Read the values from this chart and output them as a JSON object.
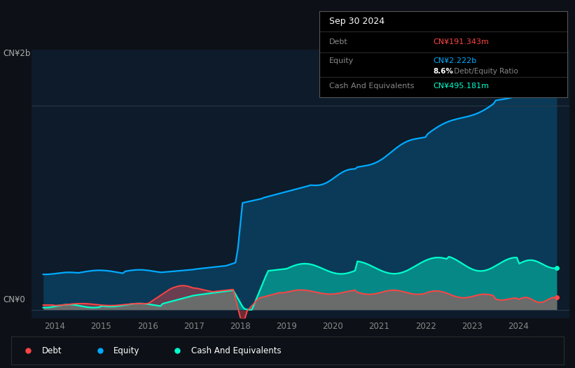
{
  "background_color": "#0d1117",
  "plot_bg_color": "#0d1b2a",
  "ylabel_top": "CN¥2b",
  "ylabel_bottom": "CN¥0",
  "x_ticks": [
    2014,
    2015,
    2016,
    2017,
    2018,
    2019,
    2020,
    2021,
    2022,
    2023,
    2024
  ],
  "equity_color": "#00aaff",
  "debt_color": "#ff4444",
  "cash_color": "#00ffcc",
  "tooltip_bg": "#000000",
  "tooltip_border": "#444444",
  "tooltip_title": "Sep 30 2024",
  "tooltip_debt_label": "Debt",
  "tooltip_debt_value": "CN¥191.343m",
  "tooltip_equity_label": "Equity",
  "tooltip_equity_value": "CN¥2.222b",
  "tooltip_ratio_bold": "8.6%",
  "tooltip_ratio_normal": " Debt/Equity Ratio",
  "tooltip_cash_label": "Cash And Equivalents",
  "tooltip_cash_value": "CN¥495.181m",
  "legend_items": [
    "Debt",
    "Equity",
    "Cash And Equivalents"
  ],
  "legend_colors": [
    "#ff4444",
    "#00aaff",
    "#00ffcc"
  ]
}
